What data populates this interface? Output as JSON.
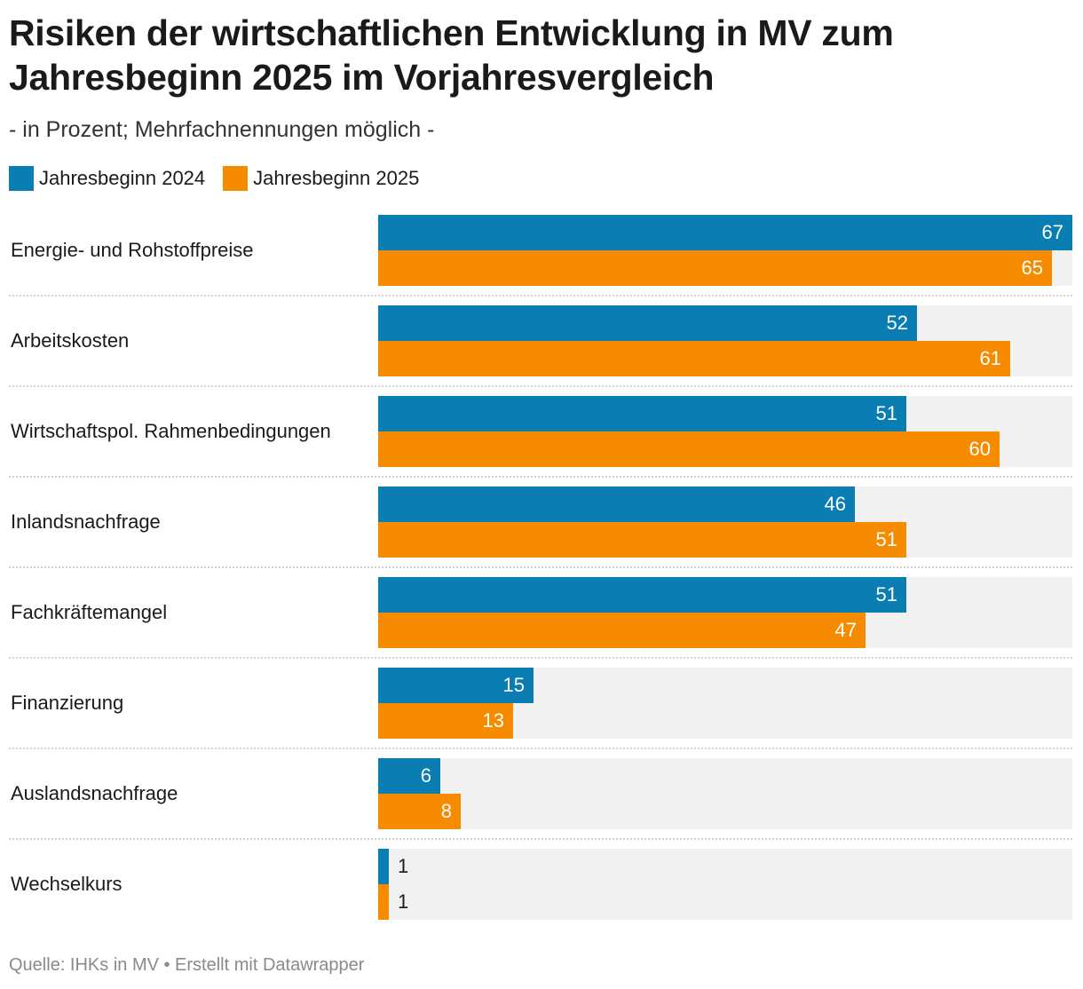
{
  "chart_data": {
    "type": "bar",
    "orientation": "horizontal",
    "title": "Risiken der wirtschaftlichen Entwicklung in MV zum Jahresbeginn 2025 im Vorjahresvergleich",
    "subtitle": "- in Prozent; Mehrfachnennungen möglich -",
    "categories": [
      "Energie- und Rohstoffpreise",
      "Arbeitskosten",
      "Wirtschaftspol. Rahmenbedingungen",
      "Inlandsnachfrage",
      "Fachkräftemangel",
      "Finanzierung",
      "Auslandsnachfrage",
      "Wechselkurs"
    ],
    "series": [
      {
        "name": "Jahresbeginn 2024",
        "color": "#0a7db3",
        "values": [
          67,
          52,
          51,
          46,
          51,
          15,
          6,
          1
        ]
      },
      {
        "name": "Jahresbeginn 2025",
        "color": "#f68b00",
        "values": [
          65,
          61,
          60,
          51,
          47,
          13,
          8,
          1
        ]
      }
    ],
    "xlim": [
      0,
      67
    ],
    "grid": false,
    "legend_position": "top-left",
    "source": "Quelle: IHKs in MV • Erstellt mit Datawrapper"
  }
}
